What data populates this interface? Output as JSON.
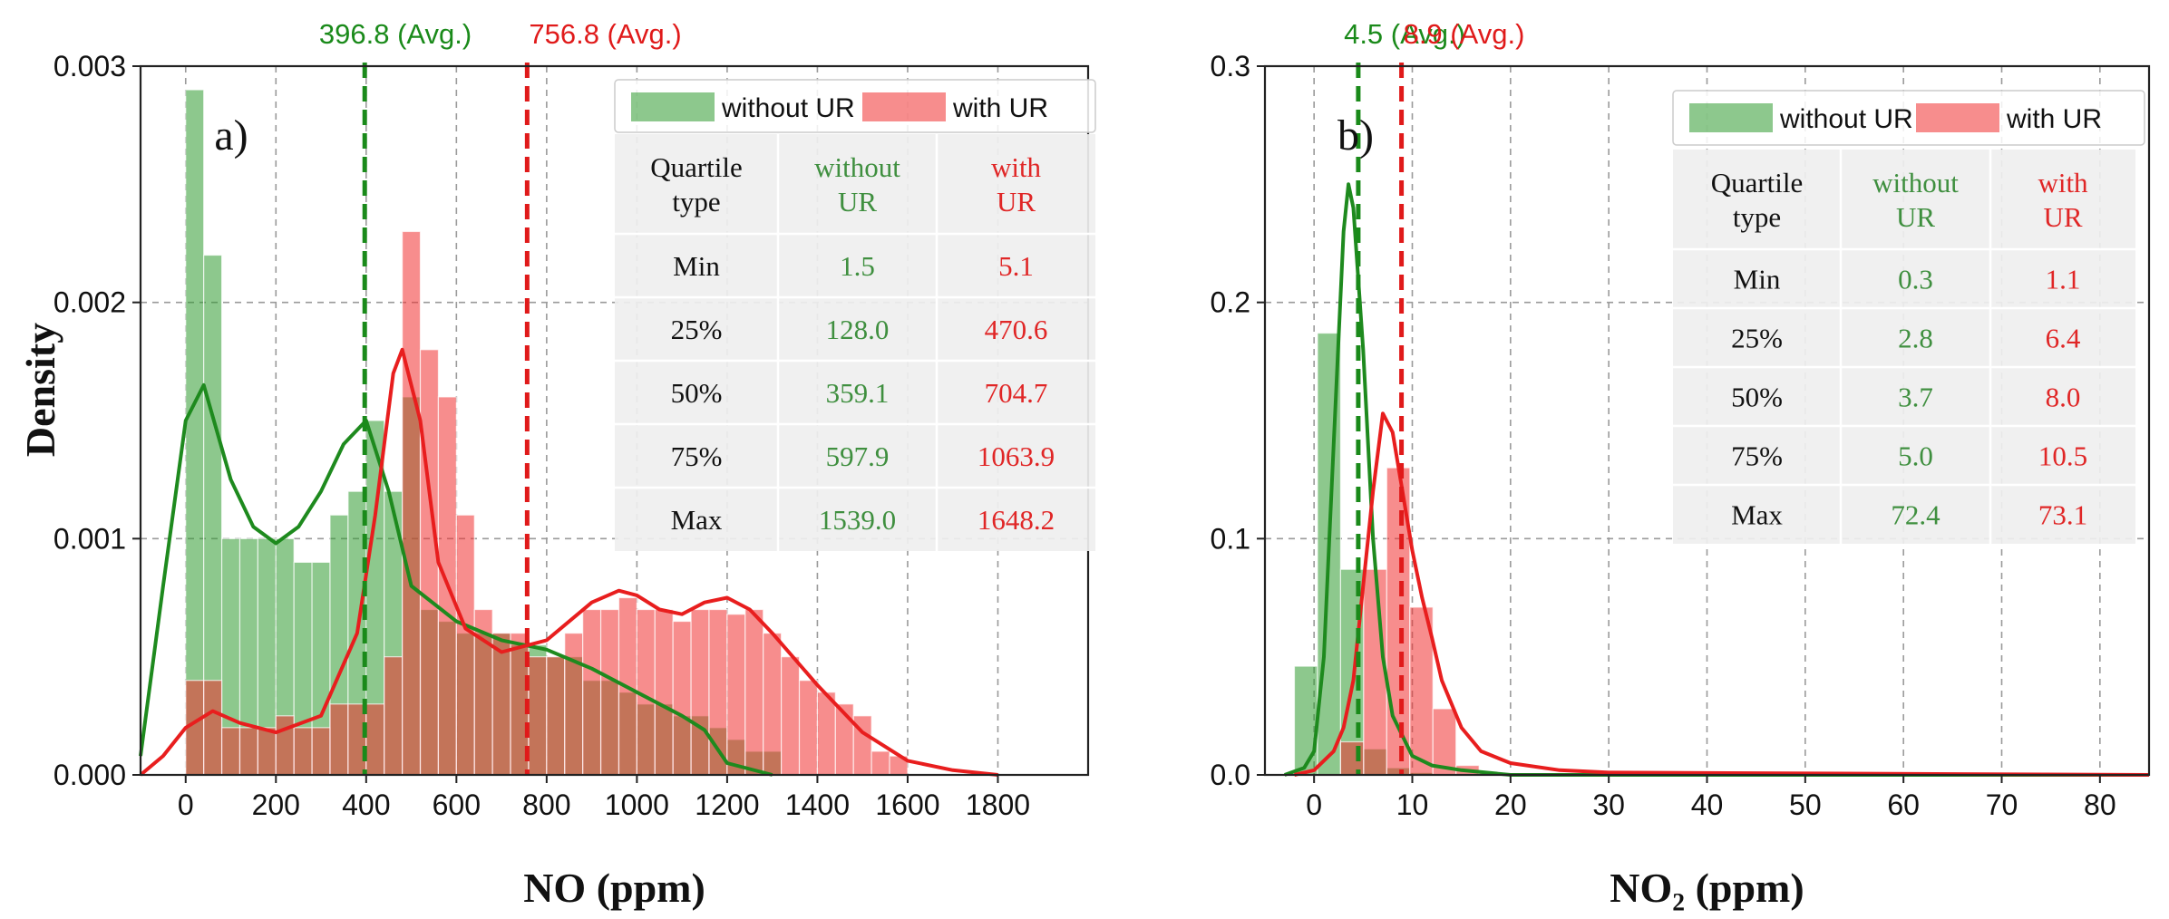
{
  "figure": {
    "y_axis_label": "Density"
  },
  "colors": {
    "without": "#2f9a2f",
    "with": "#f03030",
    "without_line": "#1e8a1e",
    "with_line": "#e81e1e",
    "without_text": "#3f8f3f",
    "with_text": "#e02626",
    "avg_without": "#1a8a1a",
    "avg_with": "#e01a1a"
  },
  "chart_data": [
    {
      "type": "bar",
      "panel_label": "a)",
      "xlabel": "NO (ppm)",
      "ylabel": "Density",
      "xlim": [
        -100,
        2000
      ],
      "ylim": [
        0,
        0.003
      ],
      "xticks": [
        0,
        200,
        400,
        600,
        800,
        1000,
        1200,
        1400,
        1600,
        1800
      ],
      "xtick_labels": [
        "0",
        "200",
        "400",
        "600",
        "800",
        "1000",
        "1200",
        "1400",
        "1600",
        "1800"
      ],
      "yticks": [
        0,
        0.001,
        0.002,
        0.003
      ],
      "ytick_labels": [
        "0.000",
        "0.001",
        "0.002",
        "0.003"
      ],
      "grid": true,
      "legend": [
        "without UR",
        "with UR"
      ],
      "legend_position": "top-right",
      "series": [
        {
          "name": "without UR",
          "bin_start": 0,
          "bin_width": 40,
          "values": [
            0.0029,
            0.0022,
            0.001,
            0.001,
            0.001,
            0.001,
            0.0009,
            0.0009,
            0.0011,
            0.0012,
            0.0015,
            0.0012,
            0.0016,
            0.0007,
            0.00065,
            0.0006,
            0.0006,
            0.0006,
            0.00055,
            0.00055,
            0.0005,
            0.0005,
            0.0004,
            0.0004,
            0.00035,
            0.0003,
            0.0003,
            0.00025,
            0.00025,
            0.0002,
            0.00015,
            0.0001,
            0.0001
          ],
          "kde_x": [
            -100,
            -50,
            0,
            40,
            100,
            150,
            200,
            250,
            300,
            350,
            400,
            450,
            500,
            600,
            700,
            800,
            900,
            1000,
            1100,
            1150,
            1200,
            1300
          ],
          "kde_y": [
            8e-05,
            0.0008,
            0.0015,
            0.00165,
            0.00125,
            0.00105,
            0.00098,
            0.00105,
            0.0012,
            0.0014,
            0.0015,
            0.0012,
            0.0008,
            0.00065,
            0.00057,
            0.00053,
            0.00045,
            0.00035,
            0.00025,
            0.00019,
            5e-05,
            0.0
          ]
        },
        {
          "name": "with UR",
          "bin_start": 0,
          "bin_width": 40,
          "values": [
            0.0004,
            0.0004,
            0.0002,
            0.0002,
            0.0002,
            0.00025,
            0.0002,
            0.0002,
            0.0003,
            0.0003,
            0.0003,
            0.0005,
            0.0023,
            0.0018,
            0.0016,
            0.0011,
            0.0007,
            0.0006,
            0.0006,
            0.0005,
            0.0005,
            0.0006,
            0.0007,
            0.0007,
            0.00075,
            0.0007,
            0.0007,
            0.00065,
            0.0007,
            0.0007,
            0.00068,
            0.0007,
            0.0006,
            0.0005,
            0.0004,
            0.00035,
            0.0003,
            0.00025,
            0.0001,
            8e-05
          ],
          "kde_x": [
            -100,
            -50,
            0,
            60,
            120,
            200,
            300,
            380,
            420,
            460,
            480,
            520,
            560,
            620,
            700,
            800,
            900,
            960,
            1000,
            1050,
            1100,
            1150,
            1200,
            1250,
            1300,
            1400,
            1500,
            1600,
            1700,
            1800
          ],
          "kde_y": [
            0.0,
            8e-05,
            0.0002,
            0.00027,
            0.00022,
            0.00018,
            0.00025,
            0.0006,
            0.0011,
            0.0017,
            0.0018,
            0.0015,
            0.0009,
            0.00062,
            0.00052,
            0.00057,
            0.00073,
            0.00078,
            0.00076,
            0.0007,
            0.00068,
            0.00073,
            0.00075,
            0.0007,
            0.0006,
            0.00038,
            0.00018,
            6e-05,
            2e-05,
            0.0
          ]
        }
      ],
      "averages": [
        {
          "series": "without UR",
          "x": 396.8,
          "label": "396.8 (Avg.)"
        },
        {
          "series": "with UR",
          "x": 756.8,
          "label": "756.8 (Avg.)"
        }
      ],
      "quartile_table": {
        "headers": [
          "Quartile\ntype",
          "without\nUR",
          "with\nUR"
        ],
        "rows": [
          [
            "Min",
            "1.5",
            "5.1"
          ],
          [
            "25%",
            "128.0",
            "470.6"
          ],
          [
            "50%",
            "359.1",
            "704.7"
          ],
          [
            "75%",
            "597.9",
            "1063.9"
          ],
          [
            "Max",
            "1539.0",
            "1648.2"
          ]
        ]
      }
    },
    {
      "type": "bar",
      "panel_label": "b)",
      "xlabel": "NO₂ (ppm)",
      "ylabel": "",
      "xlim": [
        -5,
        85
      ],
      "ylim": [
        0,
        0.3
      ],
      "xticks": [
        0,
        10,
        20,
        30,
        40,
        50,
        60,
        70,
        80
      ],
      "xtick_labels": [
        "0",
        "10",
        "20",
        "30",
        "40",
        "50",
        "60",
        "70",
        "80"
      ],
      "yticks": [
        0,
        0.1,
        0.2,
        0.3
      ],
      "ytick_labels": [
        "0.0",
        "0.1",
        "0.2",
        "0.3"
      ],
      "grid": true,
      "legend": [
        "without UR",
        "with UR"
      ],
      "legend_position": "top-right",
      "series": [
        {
          "name": "without UR",
          "bin_start": -2,
          "bin_width": 2.35,
          "values": [
            0.046,
            0.187,
            0.087,
            0.011,
            0.003,
            0.001
          ],
          "kde_x": [
            -3,
            -1,
            0,
            1,
            2,
            3,
            3.5,
            4,
            5,
            6,
            7,
            8,
            10,
            12,
            15,
            20,
            85
          ],
          "kde_y": [
            0.0,
            0.003,
            0.01,
            0.05,
            0.14,
            0.23,
            0.25,
            0.24,
            0.18,
            0.1,
            0.05,
            0.025,
            0.008,
            0.004,
            0.002,
            0.0,
            0.0
          ]
        },
        {
          "name": "with UR",
          "bin_start": 2.7,
          "bin_width": 2.35,
          "values": [
            0.014,
            0.087,
            0.13,
            0.071,
            0.028,
            0.004,
            0.001
          ],
          "kde_x": [
            -2,
            0,
            2,
            3,
            4,
            5,
            6,
            7,
            8,
            9,
            10,
            11,
            12,
            13,
            15,
            17,
            20,
            25,
            30,
            85
          ],
          "kde_y": [
            0.0,
            0.002,
            0.01,
            0.02,
            0.04,
            0.08,
            0.12,
            0.153,
            0.145,
            0.12,
            0.095,
            0.075,
            0.058,
            0.04,
            0.02,
            0.01,
            0.005,
            0.002,
            0.001,
            0.0
          ]
        }
      ],
      "averages": [
        {
          "series": "without UR",
          "x": 4.5,
          "label": "4.5 (Avg.)"
        },
        {
          "series": "with UR",
          "x": 8.9,
          "label": "8.9 (Avg.)"
        }
      ],
      "quartile_table": {
        "headers": [
          "Quartile\ntype",
          "without\nUR",
          "with\nUR"
        ],
        "rows": [
          [
            "Min",
            "0.3",
            "1.1"
          ],
          [
            "25%",
            "2.8",
            "6.4"
          ],
          [
            "50%",
            "3.7",
            "8.0"
          ],
          [
            "75%",
            "5.0",
            "10.5"
          ],
          [
            "Max",
            "72.4",
            "73.1"
          ]
        ]
      }
    }
  ]
}
